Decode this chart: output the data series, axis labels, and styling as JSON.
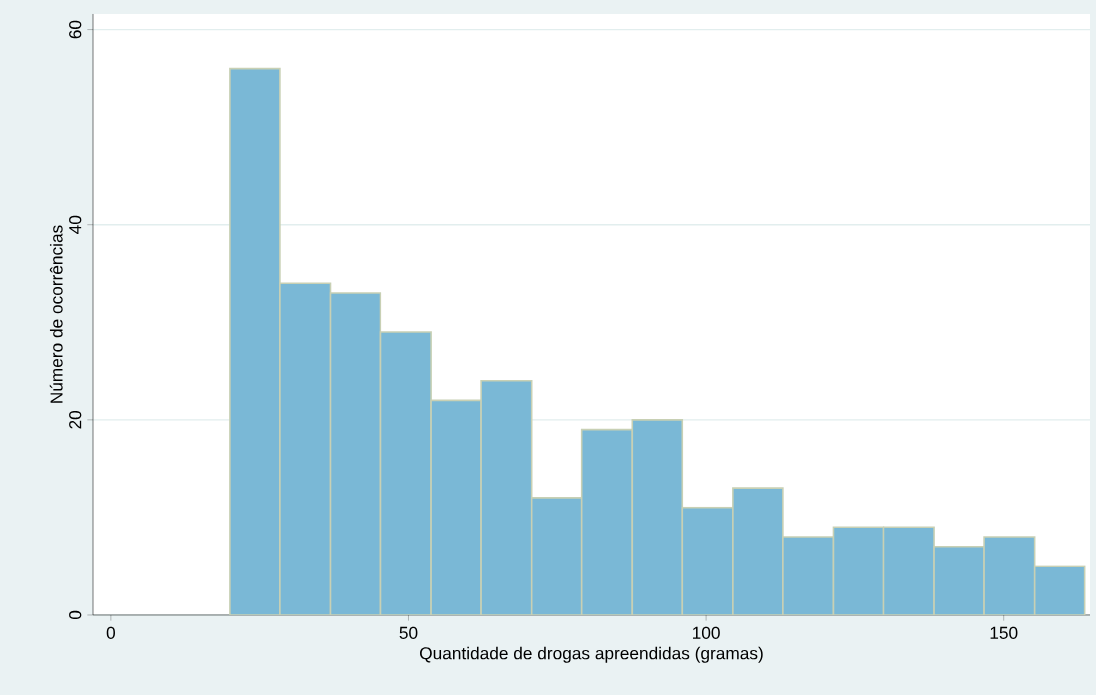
{
  "chart_data": {
    "type": "histogram",
    "xlabel": "Quantidade de drogas apreendidas (gramas)",
    "ylabel": "Número de ocorrências",
    "bins": [
      20,
      28.4,
      36.9,
      45.3,
      53.8,
      62.2,
      70.7,
      79.1,
      87.6,
      96,
      104.5,
      112.9,
      121.4,
      129.8,
      138.3,
      146.7,
      155.2,
      163.6
    ],
    "values": [
      56,
      34,
      33,
      29,
      22,
      24,
      12,
      19,
      20,
      11,
      13,
      8,
      9,
      9,
      7,
      8,
      5
    ],
    "color": "#7ab8d6",
    "xlim": [
      -3,
      164.5
    ],
    "xticks": [
      0,
      50,
      100,
      150
    ],
    "ylim": [
      0,
      61.6
    ],
    "yticks": [
      0,
      20,
      40,
      60
    ],
    "grid": "y"
  }
}
